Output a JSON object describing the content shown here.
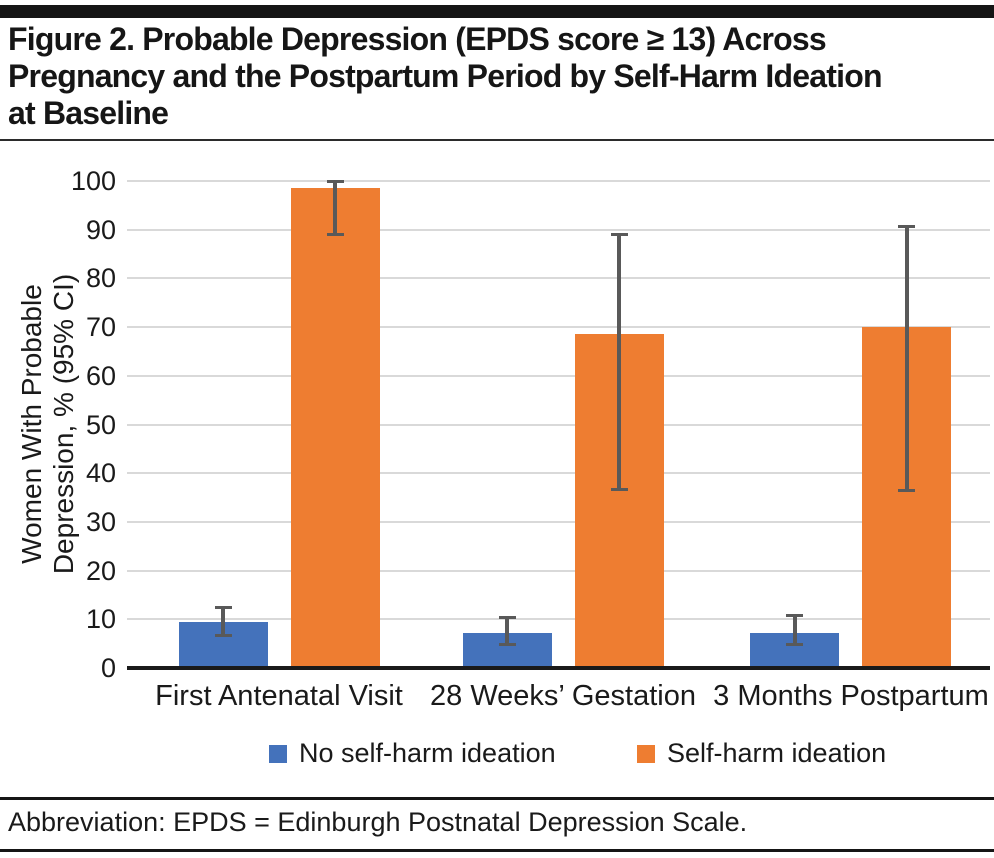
{
  "header": {
    "title_lines": [
      "Figure 2. Probable Depression (EPDS score ≥ 13) Across",
      "Pregnancy and the Postpartum Period by Self-Harm Ideation",
      "at Baseline"
    ]
  },
  "chart_data": {
    "type": "bar",
    "title": "Figure 2. Probable Depression (EPDS score ≥ 13) Across Pregnancy and the Postpartum Period by Self-Harm Ideation at Baseline",
    "categories": [
      "First Antenatal Visit",
      "28 Weeks’ Gestation",
      "3 Months Postpartum"
    ],
    "series": [
      {
        "name": "No self-harm ideation",
        "color": "#4472bb",
        "values": [
          9.4,
          7.1,
          7.2
        ],
        "ci_low": [
          6.6,
          4.7,
          4.8
        ],
        "ci_high": [
          12.6,
          10.4,
          10.8
        ]
      },
      {
        "name": "Self-harm ideation",
        "color": "#ee7d31",
        "values": [
          98.5,
          68.5,
          70.1
        ],
        "ci_low": [
          89.0,
          36.5,
          36.4
        ],
        "ci_high": [
          100.0,
          89.2,
          90.7
        ]
      }
    ],
    "xlabel": "",
    "ylabel_lines": [
      "Women With Probable",
      "Depression, % (95% CI)"
    ],
    "ylim": [
      0,
      100
    ],
    "yticks": [
      0,
      10,
      20,
      30,
      40,
      50,
      60,
      70,
      80,
      90,
      100
    ],
    "grid": true,
    "legend_position": "bottom",
    "error_bars": "95% CI",
    "colors": {
      "gridline": "#d9d9d9",
      "axis": "#1a1a1a",
      "error_bar": "#595959",
      "text": "#1a1a1a"
    }
  },
  "footer": {
    "text": "Abbreviation: EPDS = Edinburgh Postnatal Depression Scale."
  }
}
